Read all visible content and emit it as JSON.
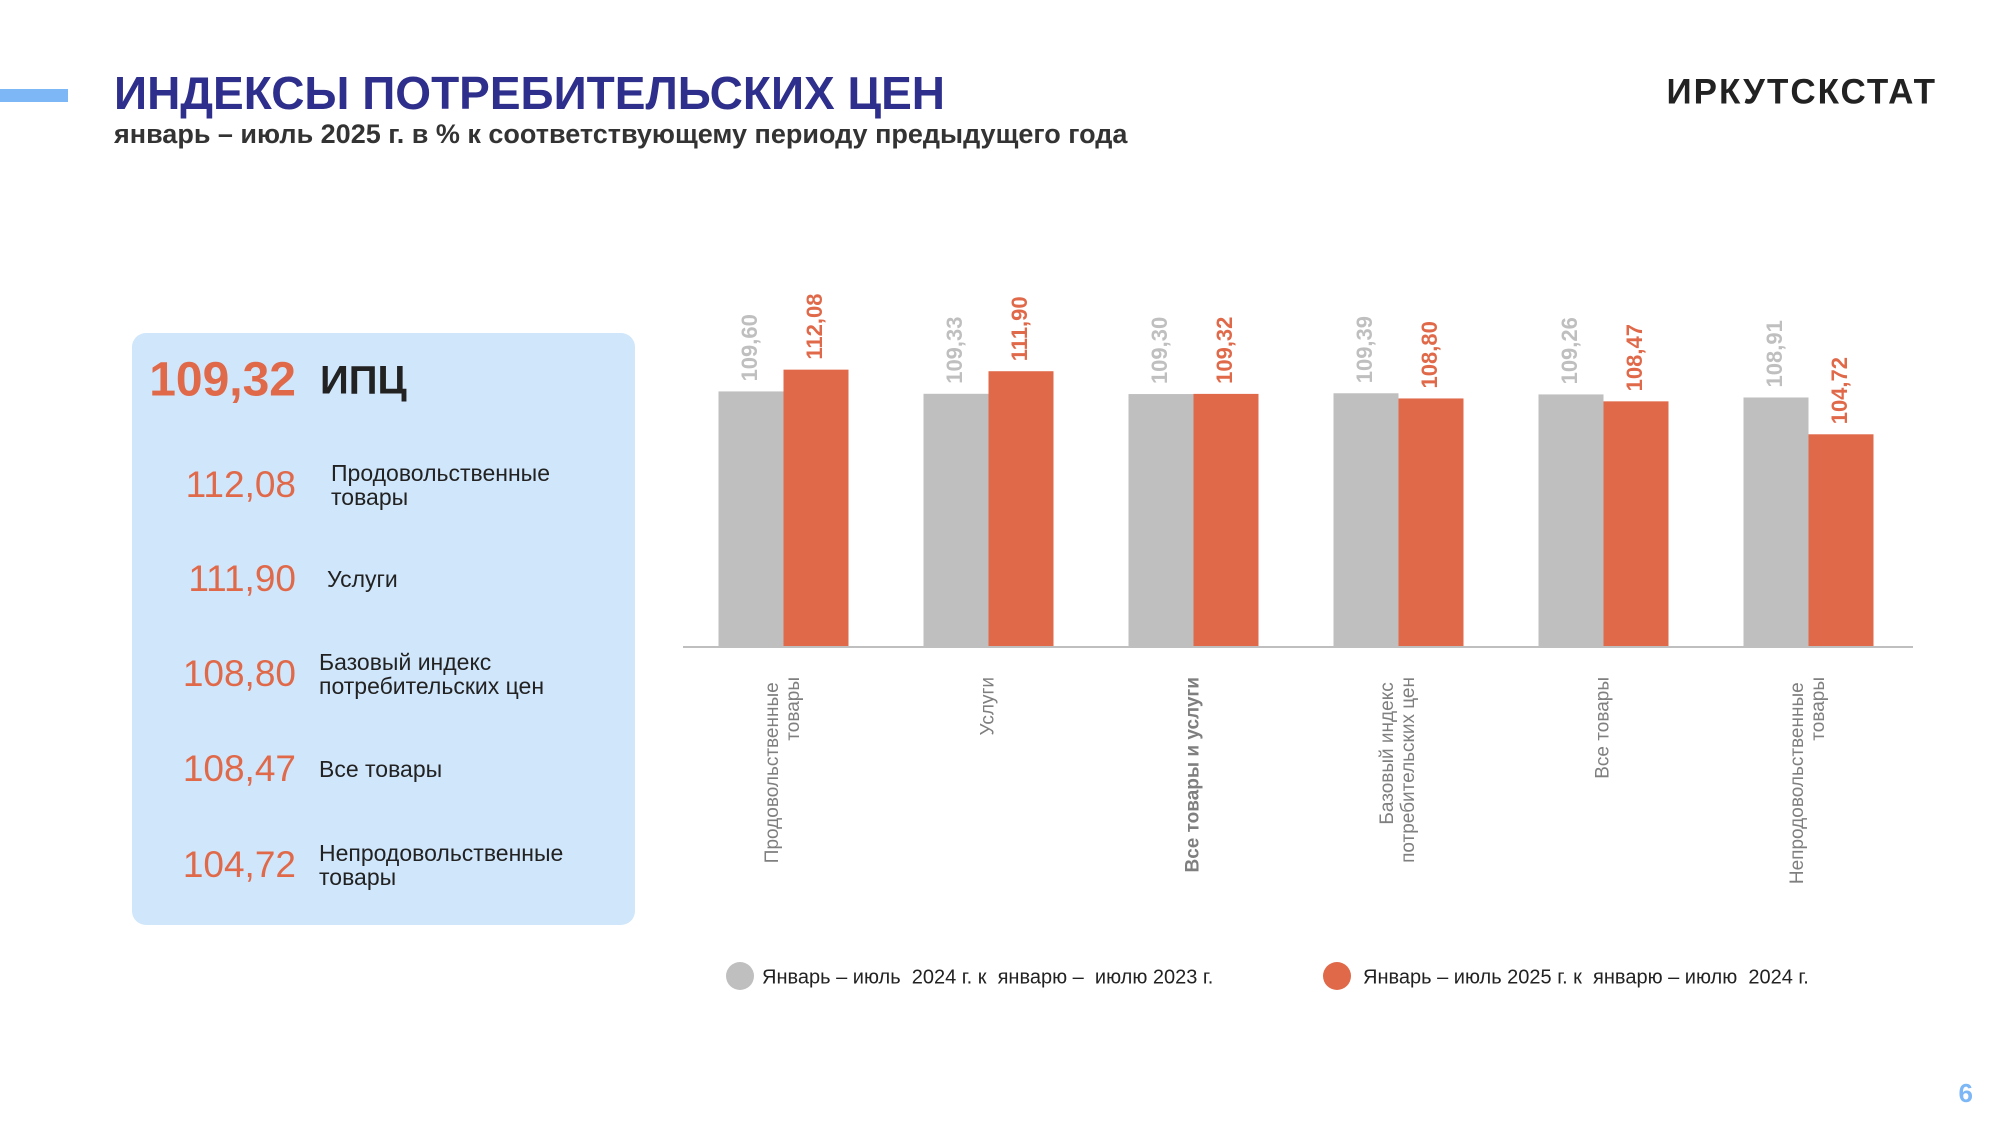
{
  "header": {
    "title": "ИНДЕКСЫ ПОТРЕБИТЕЛЬСКИХ ЦЕН",
    "subtitle": "январь – июль 2025 г. в % к соответствующему периоду предыдущего года",
    "brand": "ИРКУТСКСТАТ",
    "page": "6"
  },
  "summary": {
    "main": {
      "value": "109,32",
      "label": "ИПЦ"
    },
    "items": [
      {
        "value": "112,08",
        "label": "Продовольственные товары"
      },
      {
        "value": "111,90",
        "label": "Услуги"
      },
      {
        "value": "108,80",
        "label": "Базовый индекс потребительских цен"
      },
      {
        "value": "108,47",
        "label": "Все товары"
      },
      {
        "value": "104,72",
        "label": "Непродовольственные товары"
      }
    ]
  },
  "chart_data": {
    "type": "bar",
    "categories": [
      "Продовольственные товары",
      "Услуги",
      "Все товары и услуги",
      "Базовый индекс потребительских цен",
      "Все товары",
      "Непродовольственные товары"
    ],
    "bold_category": 2,
    "series": [
      {
        "name": "Январь – июль  2024 г. к  январю –  июлю 2023 г.",
        "color": "#bfbfbf",
        "values": [
          109.6,
          109.33,
          109.3,
          109.39,
          109.26,
          108.91
        ],
        "value_labels": [
          "109,60",
          "109,33",
          "109,30",
          "109,39",
          "109,26",
          "108,91"
        ]
      },
      {
        "name": "Январь – июль 2025 г. к  январю – июлю  2024 г.",
        "color": "#e0694a",
        "values": [
          112.08,
          111.9,
          109.32,
          108.8,
          108.47,
          104.72
        ],
        "value_labels": [
          "112,08",
          "111,90",
          "109,32",
          "108,80",
          "108,47",
          "104,72"
        ]
      }
    ],
    "ylim": [
      80.5,
      115
    ]
  }
}
